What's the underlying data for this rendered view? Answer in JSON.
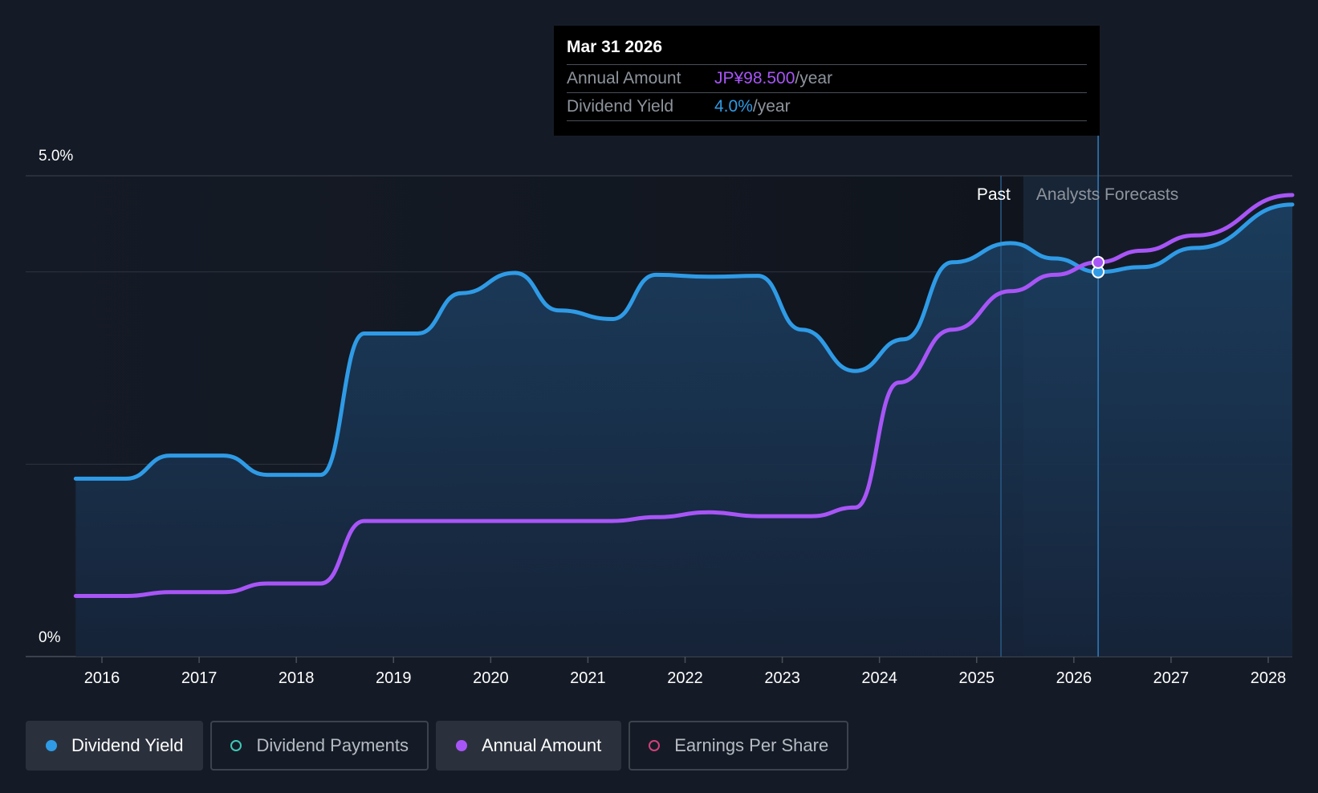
{
  "tooltip": {
    "date": "Mar 31 2026",
    "rows": [
      {
        "label": "Annual Amount",
        "value": "JP¥98.500",
        "suffix": "/year",
        "color": "#a855f7"
      },
      {
        "label": "Dividend Yield",
        "value": "4.0%",
        "suffix": "/year",
        "color": "#2f9be6"
      }
    ]
  },
  "legend": [
    {
      "label": "Dividend Yield",
      "active": true,
      "color": "#2f9be6",
      "filled": true
    },
    {
      "label": "Dividend Payments",
      "active": false,
      "color": "#3ec9b6",
      "filled": false
    },
    {
      "label": "Annual Amount",
      "active": true,
      "color": "#a855f7",
      "filled": true
    },
    {
      "label": "Earnings Per Share",
      "active": false,
      "color": "#d4407a",
      "filled": false
    }
  ],
  "chart_data": {
    "type": "line",
    "y_tick_labels": [
      "5.0%",
      "0%"
    ],
    "ylim": [
      0,
      5.0
    ],
    "xlim": [
      2015.73,
      2028.25
    ],
    "x_ticks": [
      2016,
      2017,
      2018,
      2019,
      2020,
      2021,
      2022,
      2023,
      2024,
      2025,
      2026,
      2027,
      2028
    ],
    "gridlines": [
      0,
      2.0,
      4.0,
      5.0
    ],
    "region_labels": {
      "past": "Past",
      "forecast": "Analysts Forecasts"
    },
    "forecast_start": 2025.48,
    "past_marker": 2025.25,
    "highlight_x": 2026.25,
    "series": [
      {
        "name": "Dividend Yield",
        "color": "#2f9be6",
        "area": true,
        "points": [
          [
            2015.73,
            1.85
          ],
          [
            2016.25,
            1.85
          ],
          [
            2016.7,
            2.09
          ],
          [
            2017.25,
            2.09
          ],
          [
            2017.7,
            1.89
          ],
          [
            2018.25,
            1.89
          ],
          [
            2018.7,
            3.36
          ],
          [
            2019.25,
            3.36
          ],
          [
            2019.7,
            3.78
          ],
          [
            2020.25,
            3.99
          ],
          [
            2020.7,
            3.6
          ],
          [
            2021.25,
            3.51
          ],
          [
            2021.7,
            3.97
          ],
          [
            2022.25,
            3.95
          ],
          [
            2022.75,
            3.96
          ],
          [
            2023.2,
            3.4
          ],
          [
            2023.75,
            2.97
          ],
          [
            2024.25,
            3.3
          ],
          [
            2024.75,
            4.1
          ],
          [
            2025.35,
            4.3
          ],
          [
            2025.8,
            4.14
          ],
          [
            2026.25,
            4.0
          ],
          [
            2026.7,
            4.05
          ],
          [
            2027.25,
            4.25
          ],
          [
            2028.25,
            4.7
          ]
        ]
      },
      {
        "name": "Annual Amount",
        "color": "#a855f7",
        "area": false,
        "points": [
          [
            2015.73,
            0.63
          ],
          [
            2016.25,
            0.63
          ],
          [
            2016.7,
            0.67
          ],
          [
            2017.25,
            0.67
          ],
          [
            2017.7,
            0.76
          ],
          [
            2018.25,
            0.76
          ],
          [
            2018.7,
            1.41
          ],
          [
            2019.25,
            1.41
          ],
          [
            2020.25,
            1.41
          ],
          [
            2021.25,
            1.41
          ],
          [
            2021.7,
            1.45
          ],
          [
            2022.25,
            1.5
          ],
          [
            2022.75,
            1.46
          ],
          [
            2023.3,
            1.46
          ],
          [
            2023.75,
            1.55
          ],
          [
            2024.2,
            2.85
          ],
          [
            2024.75,
            3.4
          ],
          [
            2025.35,
            3.8
          ],
          [
            2025.8,
            3.97
          ],
          [
            2026.25,
            4.1
          ],
          [
            2026.7,
            4.22
          ],
          [
            2027.25,
            4.38
          ],
          [
            2028.25,
            4.8
          ]
        ]
      }
    ]
  }
}
